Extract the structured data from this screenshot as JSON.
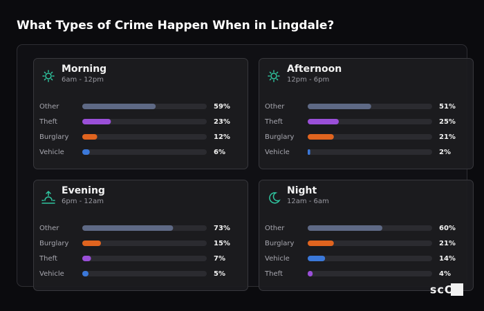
{
  "title": "What Types of Crime Happen When in Lingdale?",
  "logo": "scOS",
  "chart_data": [
    {
      "type": "bar",
      "title": "Morning",
      "subtitle": "6am - 12pm",
      "categories": [
        "Other",
        "Theft",
        "Burglary",
        "Vehicle"
      ],
      "values": [
        59,
        23,
        12,
        6
      ],
      "value_labels": [
        "59%",
        "23%",
        "12%",
        "6%"
      ],
      "colors": [
        "#5e6985",
        "#9a4fd8",
        "#e0641f",
        "#3b78d9"
      ],
      "xlim": [
        0,
        100
      ]
    },
    {
      "type": "bar",
      "title": "Afternoon",
      "subtitle": "12pm - 6pm",
      "categories": [
        "Other",
        "Theft",
        "Burglary",
        "Vehicle"
      ],
      "values": [
        51,
        25,
        21,
        2
      ],
      "value_labels": [
        "51%",
        "25%",
        "21%",
        "2%"
      ],
      "colors": [
        "#5e6985",
        "#9a4fd8",
        "#e0641f",
        "#3b78d9"
      ],
      "xlim": [
        0,
        100
      ]
    },
    {
      "type": "bar",
      "title": "Evening",
      "subtitle": "6pm - 12am",
      "categories": [
        "Other",
        "Burglary",
        "Theft",
        "Vehicle"
      ],
      "values": [
        73,
        15,
        7,
        5
      ],
      "value_labels": [
        "73%",
        "15%",
        "7%",
        "5%"
      ],
      "colors": [
        "#5e6985",
        "#e0641f",
        "#9a4fd8",
        "#3b78d9"
      ],
      "xlim": [
        0,
        100
      ]
    },
    {
      "type": "bar",
      "title": "Night",
      "subtitle": "12am - 6am",
      "categories": [
        "Other",
        "Burglary",
        "Vehicle",
        "Theft"
      ],
      "values": [
        60,
        21,
        14,
        4
      ],
      "value_labels": [
        "60%",
        "21%",
        "14%",
        "4%"
      ],
      "colors": [
        "#5e6985",
        "#e0641f",
        "#3b78d9",
        "#9a4fd8"
      ],
      "xlim": [
        0,
        100
      ]
    }
  ]
}
